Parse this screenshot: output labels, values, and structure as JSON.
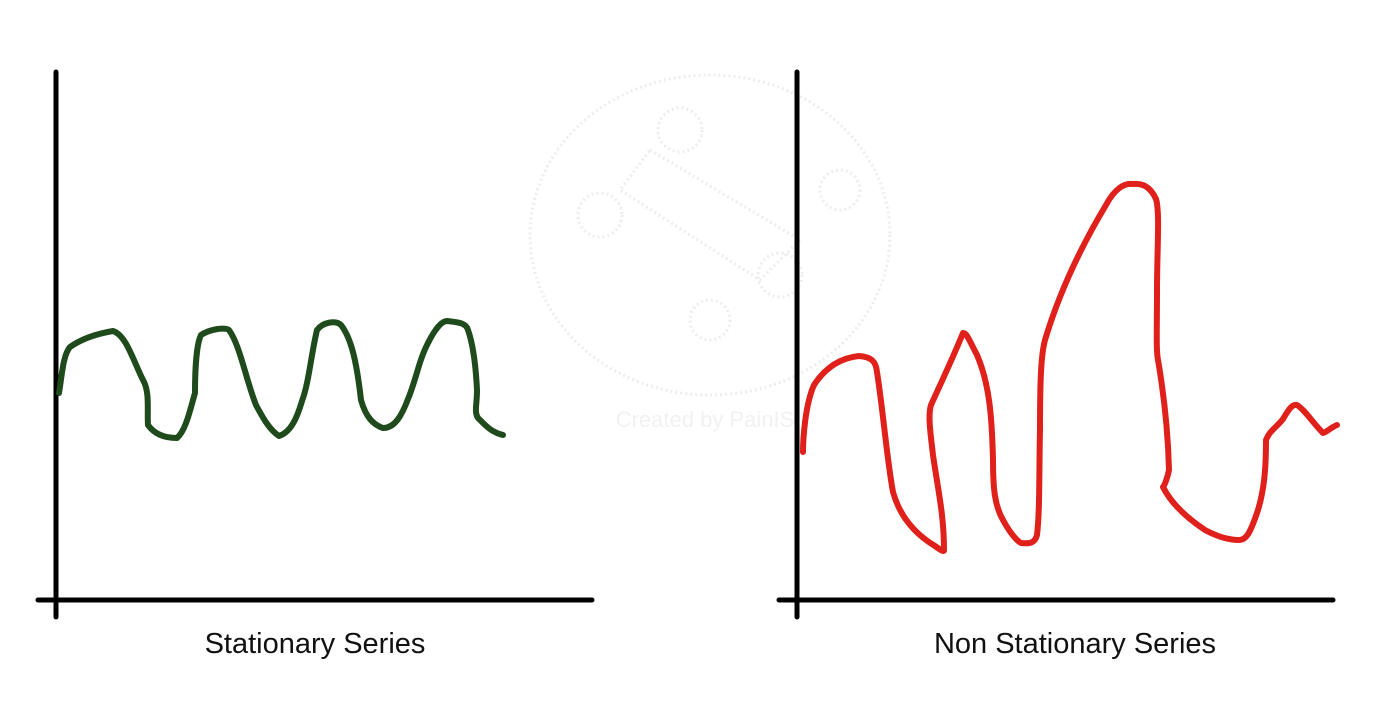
{
  "panels": [
    {
      "caption": "Stationary Series",
      "line_color": "#1e4a1c"
    },
    {
      "caption": "Non Stationary Series",
      "line_color": "#e0201b"
    }
  ],
  "watermark": {
    "text": "Created by PainIS",
    "icon": "paint-palette-icon"
  },
  "axis_color": "#000000"
}
